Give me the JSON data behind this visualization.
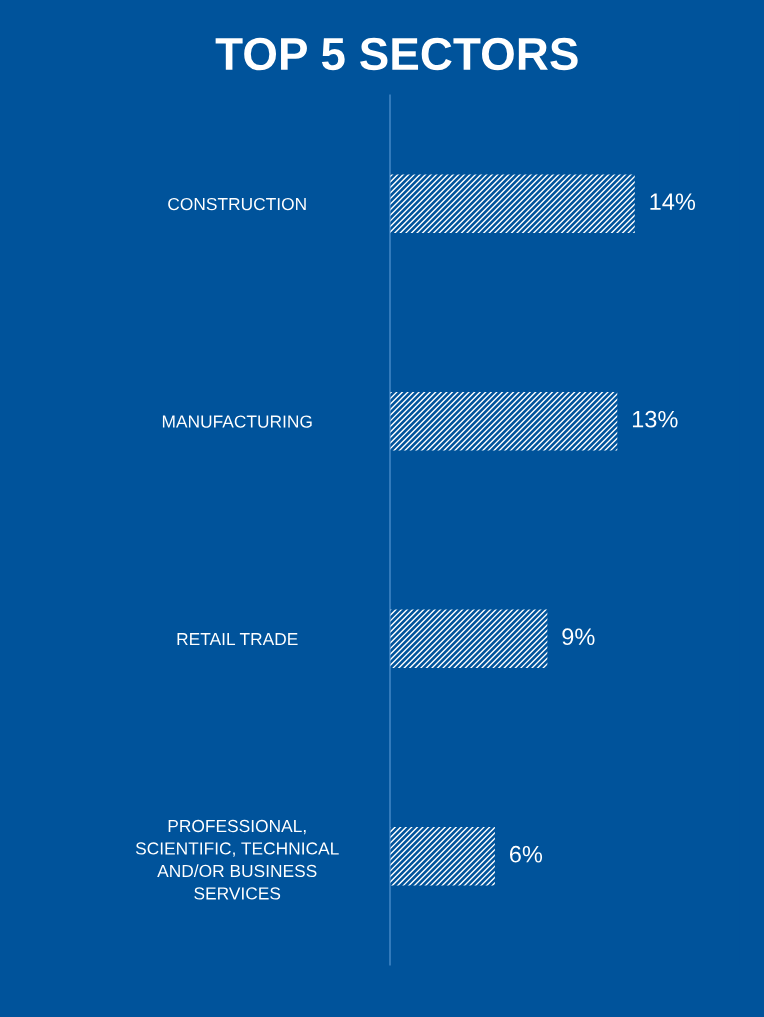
{
  "chart_data": {
    "type": "bar",
    "orientation": "horizontal",
    "title": "TOP 5 SECTORS",
    "categories": [
      "CONSTRUCTION",
      "MANUFACTURING",
      "RETAIL TRADE",
      "PROFESSIONAL,\nSCIENTIFIC, TECHNICAL\nAND/OR BUSINESS\nSERVICES"
    ],
    "values": [
      14,
      13,
      9,
      6
    ],
    "color": "#ffffff",
    "value_labels": [
      "14%",
      "13%",
      "9%",
      "6%"
    ],
    "grid": false,
    "legend": false
  }
}
